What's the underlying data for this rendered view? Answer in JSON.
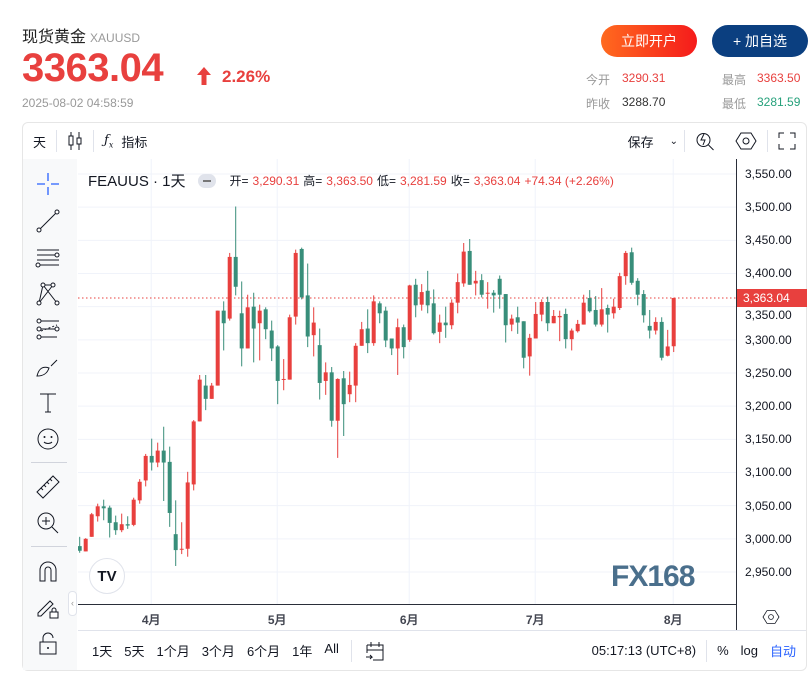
{
  "header": {
    "title": "现货黄金",
    "symbol": "XAUUSD",
    "price": "3363.04",
    "change_pct": "2.26%",
    "datetime": "2025-08-02 04:58:59",
    "open_account_label": "立即开户",
    "add_watch_label": "+ 加自选",
    "stats": {
      "open_label": "今开",
      "open": "3290.31",
      "high_label": "最高",
      "high": "3363.50",
      "prev_close_label": "昨收",
      "prev_close": "3288.70",
      "low_label": "最低",
      "low": "3281.59"
    }
  },
  "toolbar": {
    "interval": "天",
    "indicators_label": "指标",
    "save_label": "保存"
  },
  "legend": {
    "symbol": "FEAUUS · 1天",
    "o_label": "开=",
    "o": "3,290.31",
    "h_label": "高=",
    "h": "3,363.50",
    "l_label": "低=",
    "l": "3,281.59",
    "c_label": "收=",
    "c": "3,363.04",
    "change": "+74.34 (+2.26%)"
  },
  "price_axis": {
    "current": "3,363.04"
  },
  "bottom": {
    "ranges": [
      "1天",
      "5天",
      "1个月",
      "3个月",
      "6个月",
      "1年",
      "All"
    ],
    "clock": "05:17:13 (UTC+8)",
    "pct": "%",
    "log": "log",
    "auto": "自动"
  },
  "watermark": "FX168",
  "colors": {
    "up": "#e8403e",
    "down": "#388e7a",
    "accent": "#2962ff"
  },
  "chart_data": {
    "type": "candlestick",
    "ylim": [
      2925,
      3575
    ],
    "yticks": [
      "3,550.00",
      "3,500.00",
      "3,450.00",
      "3,400.00",
      "3,350.00",
      "3,300.00",
      "3,250.00",
      "3,200.00",
      "3,150.00",
      "3,100.00",
      "3,050.00",
      "3,000.00",
      "2,950.00"
    ],
    "xticks": [
      {
        "label": "4月",
        "candle": 13
      },
      {
        "label": "5月",
        "candle": 34
      },
      {
        "label": "6月",
        "candle": 56
      },
      {
        "label": "7月",
        "candle": 77
      },
      {
        "label": "8月",
        "candle": 100
      }
    ],
    "last_close": 3363.04,
    "ohlc": [
      [
        2989,
        3003,
        2979,
        2982
      ],
      [
        2981,
        3001,
        2981,
        3000
      ],
      [
        3003,
        3039,
        3003,
        3037
      ],
      [
        3034,
        3053,
        3026,
        3049
      ],
      [
        3049,
        3059,
        3028,
        3046
      ],
      [
        3047,
        3050,
        3002,
        3024
      ],
      [
        3025,
        3035,
        3006,
        3013
      ],
      [
        3013,
        3038,
        3010,
        3022
      ],
      [
        3022,
        3034,
        3015,
        3020
      ],
      [
        3021,
        3062,
        3019,
        3059
      ],
      [
        3058,
        3090,
        3053,
        3086
      ],
      [
        3088,
        3128,
        3079,
        3125
      ],
      [
        3125,
        3151,
        3103,
        3115
      ],
      [
        3115,
        3145,
        3108,
        3133
      ],
      [
        3133,
        3169,
        3057,
        3115
      ],
      [
        3116,
        3139,
        3018,
        3039
      ],
      [
        3007,
        3058,
        2959,
        2983
      ],
      [
        2984,
        3025,
        2977,
        2985
      ],
      [
        2985,
        3101,
        2973,
        3085
      ],
      [
        3082,
        3179,
        3073,
        3177
      ],
      [
        3177,
        3247,
        3177,
        3240
      ],
      [
        3231,
        3247,
        3194,
        3211
      ],
      [
        3211,
        3235,
        3211,
        3231
      ],
      [
        3231,
        3344,
        3231,
        3344
      ],
      [
        3344,
        3358,
        3284,
        3325
      ],
      [
        3332,
        3431,
        3329,
        3425
      ],
      [
        3425,
        3501,
        3367,
        3380
      ],
      [
        3340,
        3388,
        3260,
        3287
      ],
      [
        3287,
        3368,
        3287,
        3349
      ],
      [
        3350,
        3371,
        3266,
        3317
      ],
      [
        3325,
        3353,
        3269,
        3344
      ],
      [
        3346,
        3349,
        3301,
        3316
      ],
      [
        3314,
        3329,
        3268,
        3287
      ],
      [
        3290,
        3292,
        3203,
        3238
      ],
      [
        3240,
        3271,
        3224,
        3241
      ],
      [
        3240,
        3338,
        3240,
        3334
      ],
      [
        3335,
        3436,
        3323,
        3431
      ],
      [
        3437,
        3439,
        3361,
        3364
      ],
      [
        3367,
        3415,
        3289,
        3305
      ],
      [
        3307,
        3349,
        3275,
        3326
      ],
      [
        3292,
        3317,
        3210,
        3235
      ],
      [
        3238,
        3266,
        3217,
        3251
      ],
      [
        3251,
        3259,
        3169,
        3178
      ],
      [
        3178,
        3242,
        3122,
        3241
      ],
      [
        3242,
        3253,
        3155,
        3203
      ],
      [
        3218,
        3252,
        3206,
        3232
      ],
      [
        3231,
        3295,
        3206,
        3291
      ],
      [
        3291,
        3327,
        3291,
        3316
      ],
      [
        3317,
        3346,
        3280,
        3295
      ],
      [
        3295,
        3367,
        3291,
        3358
      ],
      [
        3355,
        3358,
        3325,
        3340
      ],
      [
        3344,
        3350,
        3289,
        3299
      ],
      [
        3302,
        3302,
        3277,
        3287
      ],
      [
        3287,
        3332,
        3247,
        3319
      ],
      [
        3319,
        3323,
        3272,
        3289
      ],
      [
        3300,
        3383,
        3297,
        3382
      ],
      [
        3383,
        3392,
        3334,
        3352
      ],
      [
        3353,
        3384,
        3344,
        3372
      ],
      [
        3374,
        3404,
        3340,
        3352
      ],
      [
        3355,
        3376,
        3308,
        3310
      ],
      [
        3312,
        3338,
        3295,
        3326
      ],
      [
        3326,
        3350,
        3303,
        3322
      ],
      [
        3322,
        3361,
        3316,
        3356
      ],
      [
        3356,
        3400,
        3340,
        3387
      ],
      [
        3385,
        3446,
        3380,
        3433
      ],
      [
        3434,
        3452,
        3383,
        3383
      ],
      [
        3385,
        3404,
        3367,
        3389
      ],
      [
        3390,
        3399,
        3364,
        3368
      ],
      [
        3370,
        3387,
        3347,
        3371
      ],
      [
        3371,
        3375,
        3341,
        3367
      ],
      [
        3392,
        3397,
        3347,
        3368
      ],
      [
        3369,
        3369,
        3296,
        3322
      ],
      [
        3323,
        3338,
        3313,
        3332
      ],
      [
        3334,
        3350,
        3309,
        3326
      ],
      [
        3328,
        3328,
        3257,
        3273
      ],
      [
        3275,
        3309,
        3246,
        3303
      ],
      [
        3302,
        3357,
        3302,
        3339
      ],
      [
        3338,
        3361,
        3328,
        3357
      ],
      [
        3357,
        3365,
        3313,
        3325
      ],
      [
        3325,
        3345,
        3325,
        3336
      ],
      [
        3334,
        3344,
        3298,
        3336
      ],
      [
        3339,
        3347,
        3287,
        3301
      ],
      [
        3301,
        3317,
        3284,
        3314
      ],
      [
        3313,
        3330,
        3311,
        3324
      ],
      [
        3323,
        3368,
        3323,
        3356
      ],
      [
        3363,
        3375,
        3341,
        3343
      ],
      [
        3345,
        3366,
        3320,
        3323
      ],
      [
        3323,
        3378,
        3320,
        3346
      ],
      [
        3348,
        3353,
        3311,
        3338
      ],
      [
        3340,
        3362,
        3332,
        3350
      ],
      [
        3348,
        3401,
        3345,
        3396
      ],
      [
        3396,
        3434,
        3383,
        3431
      ],
      [
        3432,
        3439,
        3383,
        3386
      ],
      [
        3389,
        3393,
        3352,
        3368
      ],
      [
        3369,
        3375,
        3326,
        3337
      ],
      [
        3321,
        3345,
        3302,
        3314
      ],
      [
        3314,
        3334,
        3308,
        3327
      ],
      [
        3327,
        3334,
        3269,
        3273
      ],
      [
        3276,
        3315,
        3275,
        3290
      ],
      [
        3290.31,
        3363.5,
        3281.59,
        3363.04
      ]
    ]
  }
}
